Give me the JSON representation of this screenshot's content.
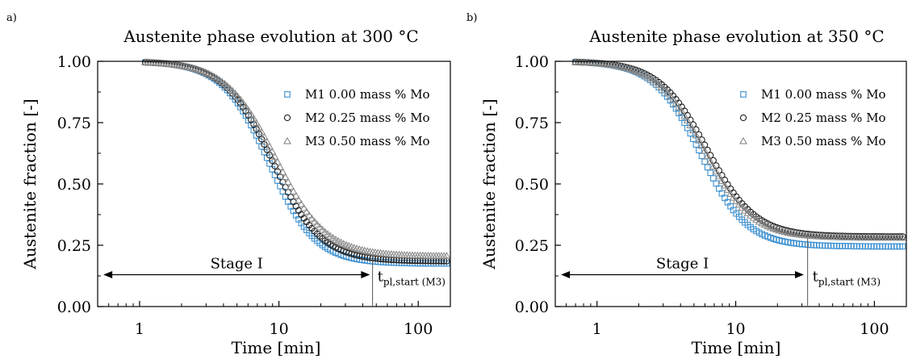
{
  "chart_data": [
    {
      "type": "scatter",
      "panel_label": "a)",
      "title": "Austenite phase evolution at 300 °C",
      "xlabel": "Time [min]",
      "ylabel": "Austenite fraction [-]",
      "xscale": "log",
      "xlim": [
        0.5,
        170
      ],
      "ylim": [
        0.0,
        1.0
      ],
      "xticks": [
        1,
        10,
        100
      ],
      "xtick_labels": [
        "1",
        "10",
        "100"
      ],
      "yticks": [
        0.0,
        0.25,
        0.5,
        0.75,
        1.0
      ],
      "ytick_labels": [
        "0.00",
        "0.25",
        "0.50",
        "0.75",
        "1.00"
      ],
      "legend_position": "top-right",
      "series": [
        {
          "name": "M1 0.00 mass % Mo",
          "marker": "square",
          "color": "#3a8fd0",
          "curve": {
            "y0": 1.0,
            "yinf": 0.175,
            "t50": 8.5,
            "n": 2.6,
            "t_start": 1.1,
            "t_end": 160
          }
        },
        {
          "name": "M2 0.25 mass % Mo",
          "marker": "circle",
          "color": "#222222",
          "curve": {
            "y0": 1.0,
            "yinf": 0.185,
            "t50": 9.0,
            "n": 2.5,
            "t_start": 1.1,
            "t_end": 160
          }
        },
        {
          "name": "M3 0.50 mass % Mo",
          "marker": "triangle",
          "color": "#8c8c8c",
          "curve": {
            "y0": 1.0,
            "yinf": 0.205,
            "t50": 9.5,
            "n": 2.4,
            "t_start": 1.1,
            "t_end": 160
          }
        }
      ],
      "annotations": {
        "stage_label": "Stage I",
        "stage_range": [
          0.55,
          45
        ],
        "stage_y": 0.13,
        "tpl_main": "t",
        "tpl_sub": "pl,start (M3)",
        "tpl_x": 47
      }
    },
    {
      "type": "scatter",
      "panel_label": "b)",
      "title": "Austenite phase evolution at 350 °C",
      "xlabel": "Time [min]",
      "ylabel": "Austenite fraction [-]",
      "xscale": "log",
      "xlim": [
        0.5,
        170
      ],
      "ylim": [
        0.0,
        1.0
      ],
      "xticks": [
        1,
        10,
        100
      ],
      "xtick_labels": [
        "1",
        "10",
        "100"
      ],
      "yticks": [
        0.0,
        0.25,
        0.5,
        0.75,
        1.0
      ],
      "ytick_labels": [
        "0.00",
        "0.25",
        "0.50",
        "0.75",
        "1.00"
      ],
      "legend_position": "top-right",
      "series": [
        {
          "name": "M1 0.00 mass % Mo",
          "marker": "square",
          "color": "#3a8fd0",
          "curve": {
            "y0": 1.0,
            "yinf": 0.245,
            "t50": 5.6,
            "n": 2.6,
            "t_start": 0.7,
            "t_end": 160
          }
        },
        {
          "name": "M2 0.25 mass % Mo",
          "marker": "circle",
          "color": "#222222",
          "curve": {
            "y0": 1.0,
            "yinf": 0.285,
            "t50": 6.2,
            "n": 2.5,
            "t_start": 0.7,
            "t_end": 160
          }
        },
        {
          "name": "M3 0.50 mass % Mo",
          "marker": "triangle",
          "color": "#8c8c8c",
          "curve": {
            "y0": 1.0,
            "yinf": 0.28,
            "t50": 5.9,
            "n": 2.5,
            "t_start": 0.7,
            "t_end": 160
          }
        }
      ],
      "annotations": {
        "stage_label": "Stage I",
        "stage_range": [
          0.55,
          31
        ],
        "stage_y": 0.13,
        "tpl_main": "t",
        "tpl_sub": "pl,start (M3)",
        "tpl_x": 33
      }
    }
  ]
}
